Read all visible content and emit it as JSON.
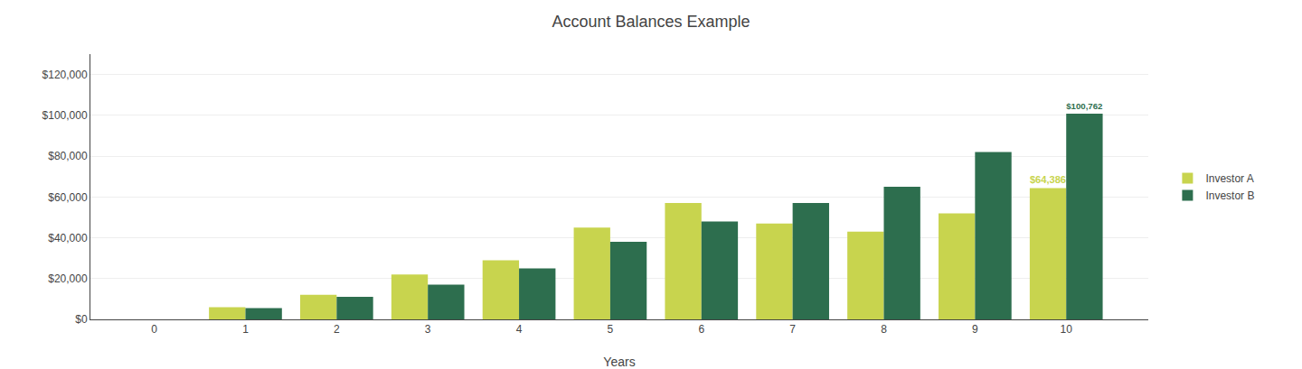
{
  "chart_data": {
    "type": "bar",
    "title": "Account Balances Example",
    "xlabel": "Years",
    "x": [
      0,
      1,
      2,
      3,
      4,
      5,
      6,
      7,
      8,
      9,
      10
    ],
    "series": [
      {
        "name": "Investor A",
        "color": "#c8d44e",
        "values": [
          0,
          6000,
          12000,
          22000,
          29000,
          45000,
          57000,
          47000,
          43000,
          52000,
          64386
        ]
      },
      {
        "name": "Investor B",
        "color": "#2d6e4e",
        "values": [
          0,
          5500,
          11000,
          17000,
          25000,
          38000,
          48000,
          57000,
          65000,
          82000,
          100762
        ]
      }
    ],
    "annotations": [
      {
        "text": "$64,386",
        "series": "Investor A",
        "x": 10
      },
      {
        "text": "$100,762",
        "series": "Investor B",
        "x": 10
      }
    ],
    "xlim": [
      -0.7,
      10.9
    ],
    "xticks": [
      0,
      1,
      2,
      3,
      4,
      5,
      6,
      7,
      8,
      9,
      10
    ],
    "ylim": [
      0,
      130000
    ],
    "yticks": [
      {
        "value": 0,
        "label": "$0"
      },
      {
        "value": 20000,
        "label": "$20,000"
      },
      {
        "value": 40000,
        "label": "$40,000"
      },
      {
        "value": 60000,
        "label": "$60,000"
      },
      {
        "value": 80000,
        "label": "$80,000"
      },
      {
        "value": 100000,
        "label": "$100,000"
      },
      {
        "value": 120000,
        "label": "$120,000"
      }
    ],
    "grid": true,
    "legend": "right"
  }
}
